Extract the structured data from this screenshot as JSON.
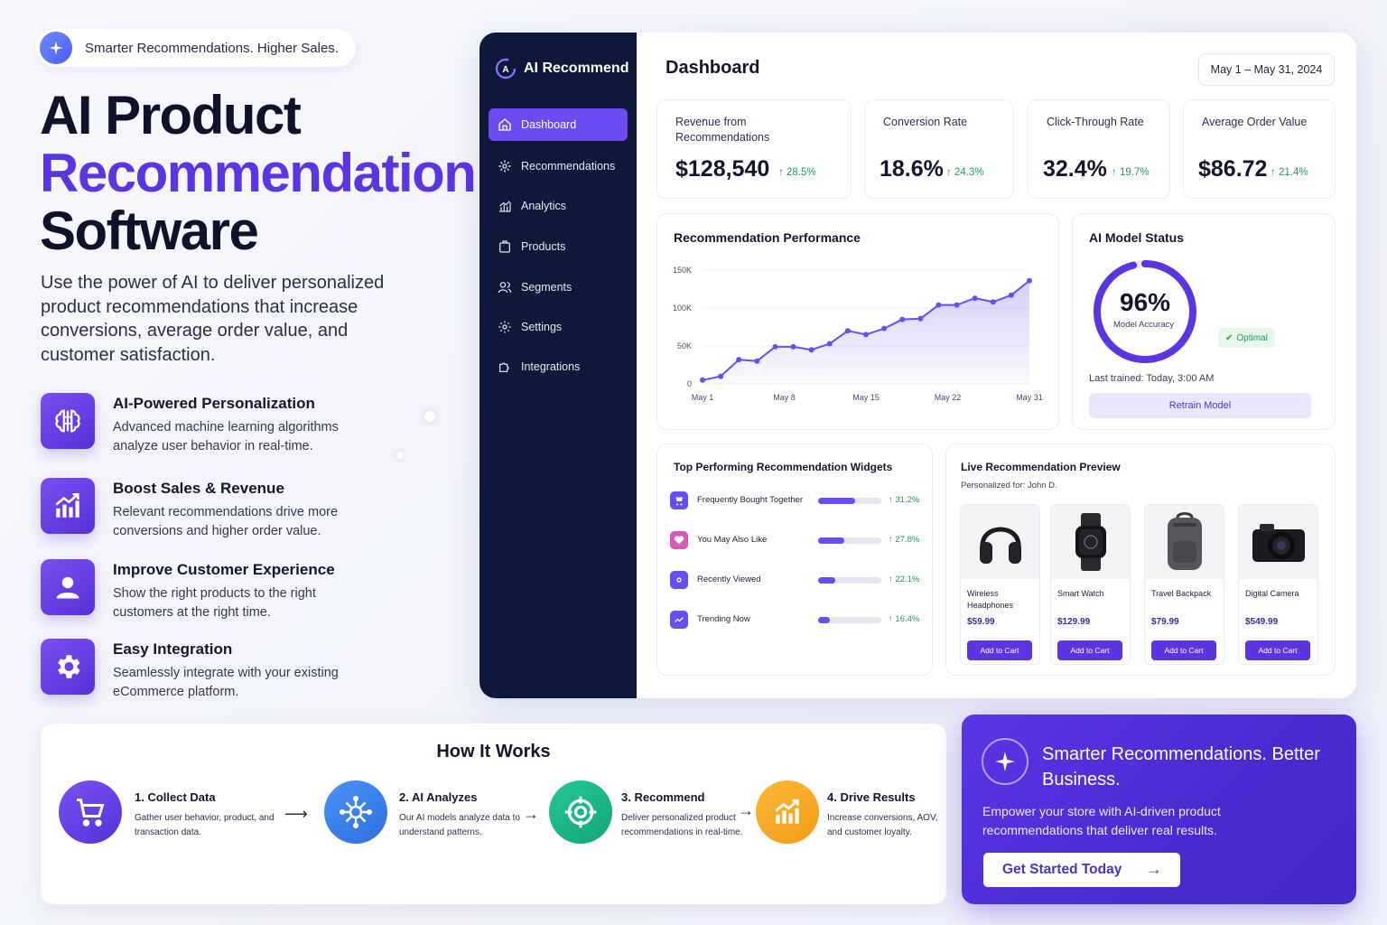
{
  "hero": {
    "pill_text": "Smarter Recommendations. Higher Sales.",
    "title_line1": "AI Product",
    "title_line2": "Recommendation",
    "title_line3": "Software",
    "description": "Use the power of AI to deliver personalized product recommendations that increase conversions, average order value, and customer satisfaction.",
    "features": [
      {
        "title": "AI-Powered Personalization",
        "desc": "Advanced machine learning algorithms analyze user behavior in real-time.",
        "icon": "brain-icon"
      },
      {
        "title": "Boost Sales & Revenue",
        "desc": "Relevant recommendations drive more conversions and higher order value.",
        "icon": "chart-up-icon"
      },
      {
        "title": "Improve Customer Experience",
        "desc": "Show the right products to the right customers at the right time.",
        "icon": "user-icon"
      },
      {
        "title": "Easy Integration",
        "desc": "Seamlessly integrate with your existing eCommerce platform.",
        "icon": "gear-icon"
      }
    ]
  },
  "dashboard": {
    "brand": "AI Recommend",
    "title": "Dashboard",
    "date_range": "May 1 – May 31, 2024",
    "nav": [
      {
        "label": "Dashboard",
        "icon": "home-icon",
        "active": true
      },
      {
        "label": "Recommendations",
        "icon": "sparkle-gear-icon"
      },
      {
        "label": "Analytics",
        "icon": "bar-chart-icon"
      },
      {
        "label": "Products",
        "icon": "box-icon"
      },
      {
        "label": "Segments",
        "icon": "users-icon"
      },
      {
        "label": "Settings",
        "icon": "gear-icon"
      },
      {
        "label": "Integrations",
        "icon": "puzzle-icon"
      }
    ],
    "kpis": [
      {
        "label": "Revenue from Recommendations",
        "value": "$128,540",
        "delta": "28.5%"
      },
      {
        "label": "Conversion Rate",
        "value": "18.6%",
        "delta": "24.3%"
      },
      {
        "label": "Click-Through Rate",
        "value": "32.4%",
        "delta": "19.7%"
      },
      {
        "label": "Average Order Value",
        "value": "$86.72",
        "delta": "21.4%"
      }
    ],
    "performance": {
      "title": "Recommendation Performance"
    },
    "model": {
      "title": "AI Model Status",
      "accuracy": "96%",
      "accuracy_fraction": 0.96,
      "accuracy_label": "Model Accuracy",
      "status": "Optimal",
      "last_trained": "Last trained: Today, 3:00 AM",
      "retrain_label": "Retrain Model"
    },
    "widgets": {
      "title": "Top Performing Recommendation Widgets",
      "items": [
        {
          "label": "Frequently Bought Together",
          "pct": "31.2%",
          "fill": 0.58,
          "color": "#6a4cf2"
        },
        {
          "label": "You May Also Like",
          "pct": "27.8%",
          "fill": 0.42,
          "color": "#d65ab8"
        },
        {
          "label": "Recently Viewed",
          "pct": "22.1%",
          "fill": 0.27,
          "color": "#6a4cf2"
        },
        {
          "label": "Trending Now",
          "pct": "16.4%",
          "fill": 0.18,
          "color": "#6a4cf2"
        }
      ]
    },
    "preview": {
      "title": "Live Recommendation Preview",
      "subtitle": "Personalized for: John D.",
      "button_label": "Add to Cart",
      "products": [
        {
          "name": "Wireless Headphones",
          "price": "$59.99",
          "icon": "headphones-icon"
        },
        {
          "name": "Smart Watch",
          "price": "$129.99",
          "icon": "watch-icon"
        },
        {
          "name": "Travel Backpack",
          "price": "$79.99",
          "icon": "backpack-icon"
        },
        {
          "name": "Digital Camera",
          "price": "$549.99",
          "icon": "camera-icon"
        }
      ]
    }
  },
  "chart_data": {
    "type": "area",
    "title": "Recommendation Performance",
    "xlabel": "",
    "ylabel": "",
    "x_ticks": [
      "May 1",
      "May 8",
      "May 15",
      "May 22",
      "May 31"
    ],
    "y_ticks": [
      "0",
      "50K",
      "100K",
      "150K"
    ],
    "ylim": [
      0,
      150000
    ],
    "grid": true,
    "series": [
      {
        "values": [
          5000,
          10000,
          32000,
          30000,
          49000,
          49000,
          45000,
          53000,
          70000,
          65000,
          73000,
          85000,
          86000,
          104000,
          104000,
          113000,
          108000,
          117000,
          136000
        ]
      }
    ]
  },
  "how_it_works": {
    "title": "How It Works",
    "steps": [
      {
        "title": "1. Collect Data",
        "desc": "Gather user behavior, product, and transaction data.",
        "icon": "cart-icon",
        "color": "#5a35e0"
      },
      {
        "title": "2. AI Analyzes",
        "desc": "Our AI models analyze data to understand patterns.",
        "icon": "brain-icon",
        "color": "#3d7fe8"
      },
      {
        "title": "3. Recommend",
        "desc": "Deliver personalized product recommendations in real-time.",
        "icon": "target-icon",
        "color": "#18b98a"
      },
      {
        "title": "4. Drive Results",
        "desc": "Increase conversions, AOV, and customer loyalty.",
        "icon": "chart-up-icon",
        "color": "#f5a623"
      }
    ]
  },
  "cta": {
    "title": "Smarter Recommendations. Better Business.",
    "desc": "Empower your store with AI-driven product recommendations that deliver real results.",
    "button": "Get Started Today"
  }
}
